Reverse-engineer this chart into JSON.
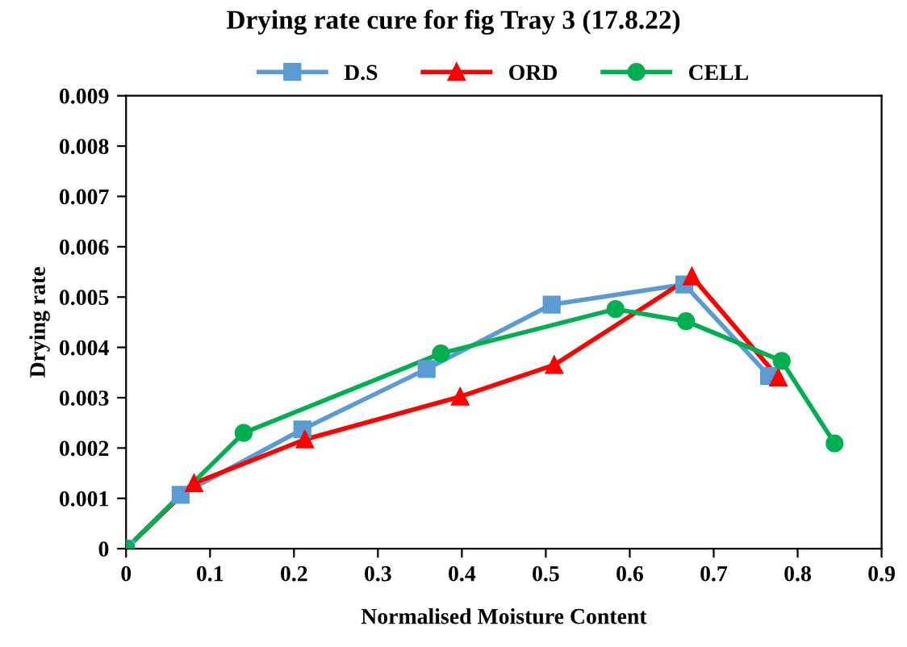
{
  "chart_data": {
    "type": "line",
    "title": "Drying rate cure for fig Tray 3 (17.8.22)",
    "xlabel": "Normalised Moisture Content",
    "ylabel": "Drying rate",
    "xlim": [
      0,
      0.9
    ],
    "xticks": [
      0,
      0.1,
      0.2,
      0.3,
      0.4,
      0.5,
      0.6,
      0.7,
      0.8,
      0.9
    ],
    "ylim": [
      0,
      0.009
    ],
    "yticks": [
      0,
      0.001,
      0.002,
      0.003,
      0.004,
      0.005,
      0.006,
      0.007,
      0.008,
      0.009
    ],
    "grid": false,
    "legend": "top",
    "line_style": "solid",
    "series": [
      {
        "name": "D.S",
        "color": "#5b9bd5",
        "marker": "square",
        "x": [
          0,
          0.065,
          0.21,
          0.358,
          0.507,
          0.665,
          0.766
        ],
        "values": [
          0,
          0.00107,
          0.00237,
          0.00357,
          0.00485,
          0.00525,
          0.00343
        ]
      },
      {
        "name": "ORD",
        "color": "#ff0000",
        "marker": "triangle",
        "x": [
          0,
          0.081,
          0.213,
          0.398,
          0.51,
          0.674,
          0.777
        ],
        "values": [
          0,
          0.0013,
          0.00217,
          0.00302,
          0.00365,
          0.00541,
          0.0034
        ]
      },
      {
        "name": "CELL",
        "color": "#00b050",
        "marker": "circle",
        "x": [
          0,
          0.14,
          0.375,
          0.583,
          0.667,
          0.781,
          0.844
        ],
        "values": [
          0,
          0.0023,
          0.00388,
          0.00476,
          0.00452,
          0.00373,
          0.00209
        ]
      }
    ]
  }
}
